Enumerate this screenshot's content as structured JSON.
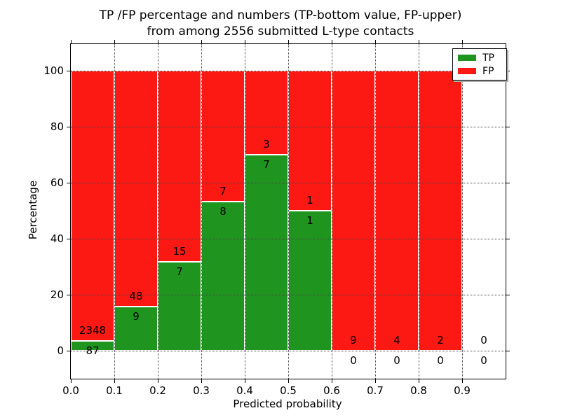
{
  "title": {
    "line1": "TP /FP percentage and numbers (TP-bottom value, FP-upper)",
    "line2": "from among 2556 submitted L-type contacts"
  },
  "chart_data": {
    "type": "bar",
    "stacked": true,
    "title": "TP /FP percentage and numbers (TP-bottom value, FP-upper) from among 2556 submitted L-type contacts",
    "xlabel": "Predicted probability",
    "ylabel": "Percentage",
    "xlim": [
      0.0,
      1.0
    ],
    "ylim": [
      -10,
      109.5
    ],
    "grid": true,
    "xtick_values": [
      0.0,
      0.1,
      0.2,
      0.3,
      0.4,
      0.5,
      0.6,
      0.7,
      0.8,
      0.9
    ],
    "xtick_labels": [
      "0.0",
      "0.1",
      "0.2",
      "0.3",
      "0.4",
      "0.5",
      "0.6",
      "0.7",
      "0.8",
      "0.9"
    ],
    "ytick_values": [
      0,
      20,
      40,
      60,
      80,
      100
    ],
    "ytick_labels": [
      "0",
      "20",
      "40",
      "60",
      "80",
      "100"
    ],
    "colors": {
      "tp": "#1f951f",
      "fp": "#fc1813"
    },
    "legend": {
      "position": "upper-right",
      "entries": [
        {
          "label": "TP",
          "color": "#1f951f"
        },
        {
          "label": "FP",
          "color": "#fc1813"
        }
      ]
    },
    "bins": [
      {
        "x_range": [
          0.0,
          0.1
        ],
        "tp_count": 87,
        "fp_count": 2348,
        "tp_pct": 3.57,
        "fp_pct": 96.43
      },
      {
        "x_range": [
          0.1,
          0.2
        ],
        "tp_count": 9,
        "fp_count": 48,
        "tp_pct": 15.79,
        "fp_pct": 84.21
      },
      {
        "x_range": [
          0.2,
          0.3
        ],
        "tp_count": 7,
        "fp_count": 15,
        "tp_pct": 31.82,
        "fp_pct": 68.18
      },
      {
        "x_range": [
          0.3,
          0.4
        ],
        "tp_count": 8,
        "fp_count": 7,
        "tp_pct": 53.33,
        "fp_pct": 46.67
      },
      {
        "x_range": [
          0.4,
          0.5
        ],
        "tp_count": 7,
        "fp_count": 3,
        "tp_pct": 70.0,
        "fp_pct": 30.0
      },
      {
        "x_range": [
          0.5,
          0.6
        ],
        "tp_count": 1,
        "fp_count": 1,
        "tp_pct": 50.0,
        "fp_pct": 50.0
      },
      {
        "x_range": [
          0.6,
          0.7
        ],
        "tp_count": 0,
        "fp_count": 9,
        "tp_pct": 0.0,
        "fp_pct": 100.0
      },
      {
        "x_range": [
          0.7,
          0.8
        ],
        "tp_count": 0,
        "fp_count": 4,
        "tp_pct": 0.0,
        "fp_pct": 100.0
      },
      {
        "x_range": [
          0.8,
          0.9
        ],
        "tp_count": 0,
        "fp_count": 2,
        "tp_pct": 0.0,
        "fp_pct": 100.0
      },
      {
        "x_range": [
          0.9,
          1.0
        ],
        "tp_count": 0,
        "fp_count": 0,
        "tp_pct": 0.0,
        "fp_pct": 0.0
      }
    ]
  }
}
